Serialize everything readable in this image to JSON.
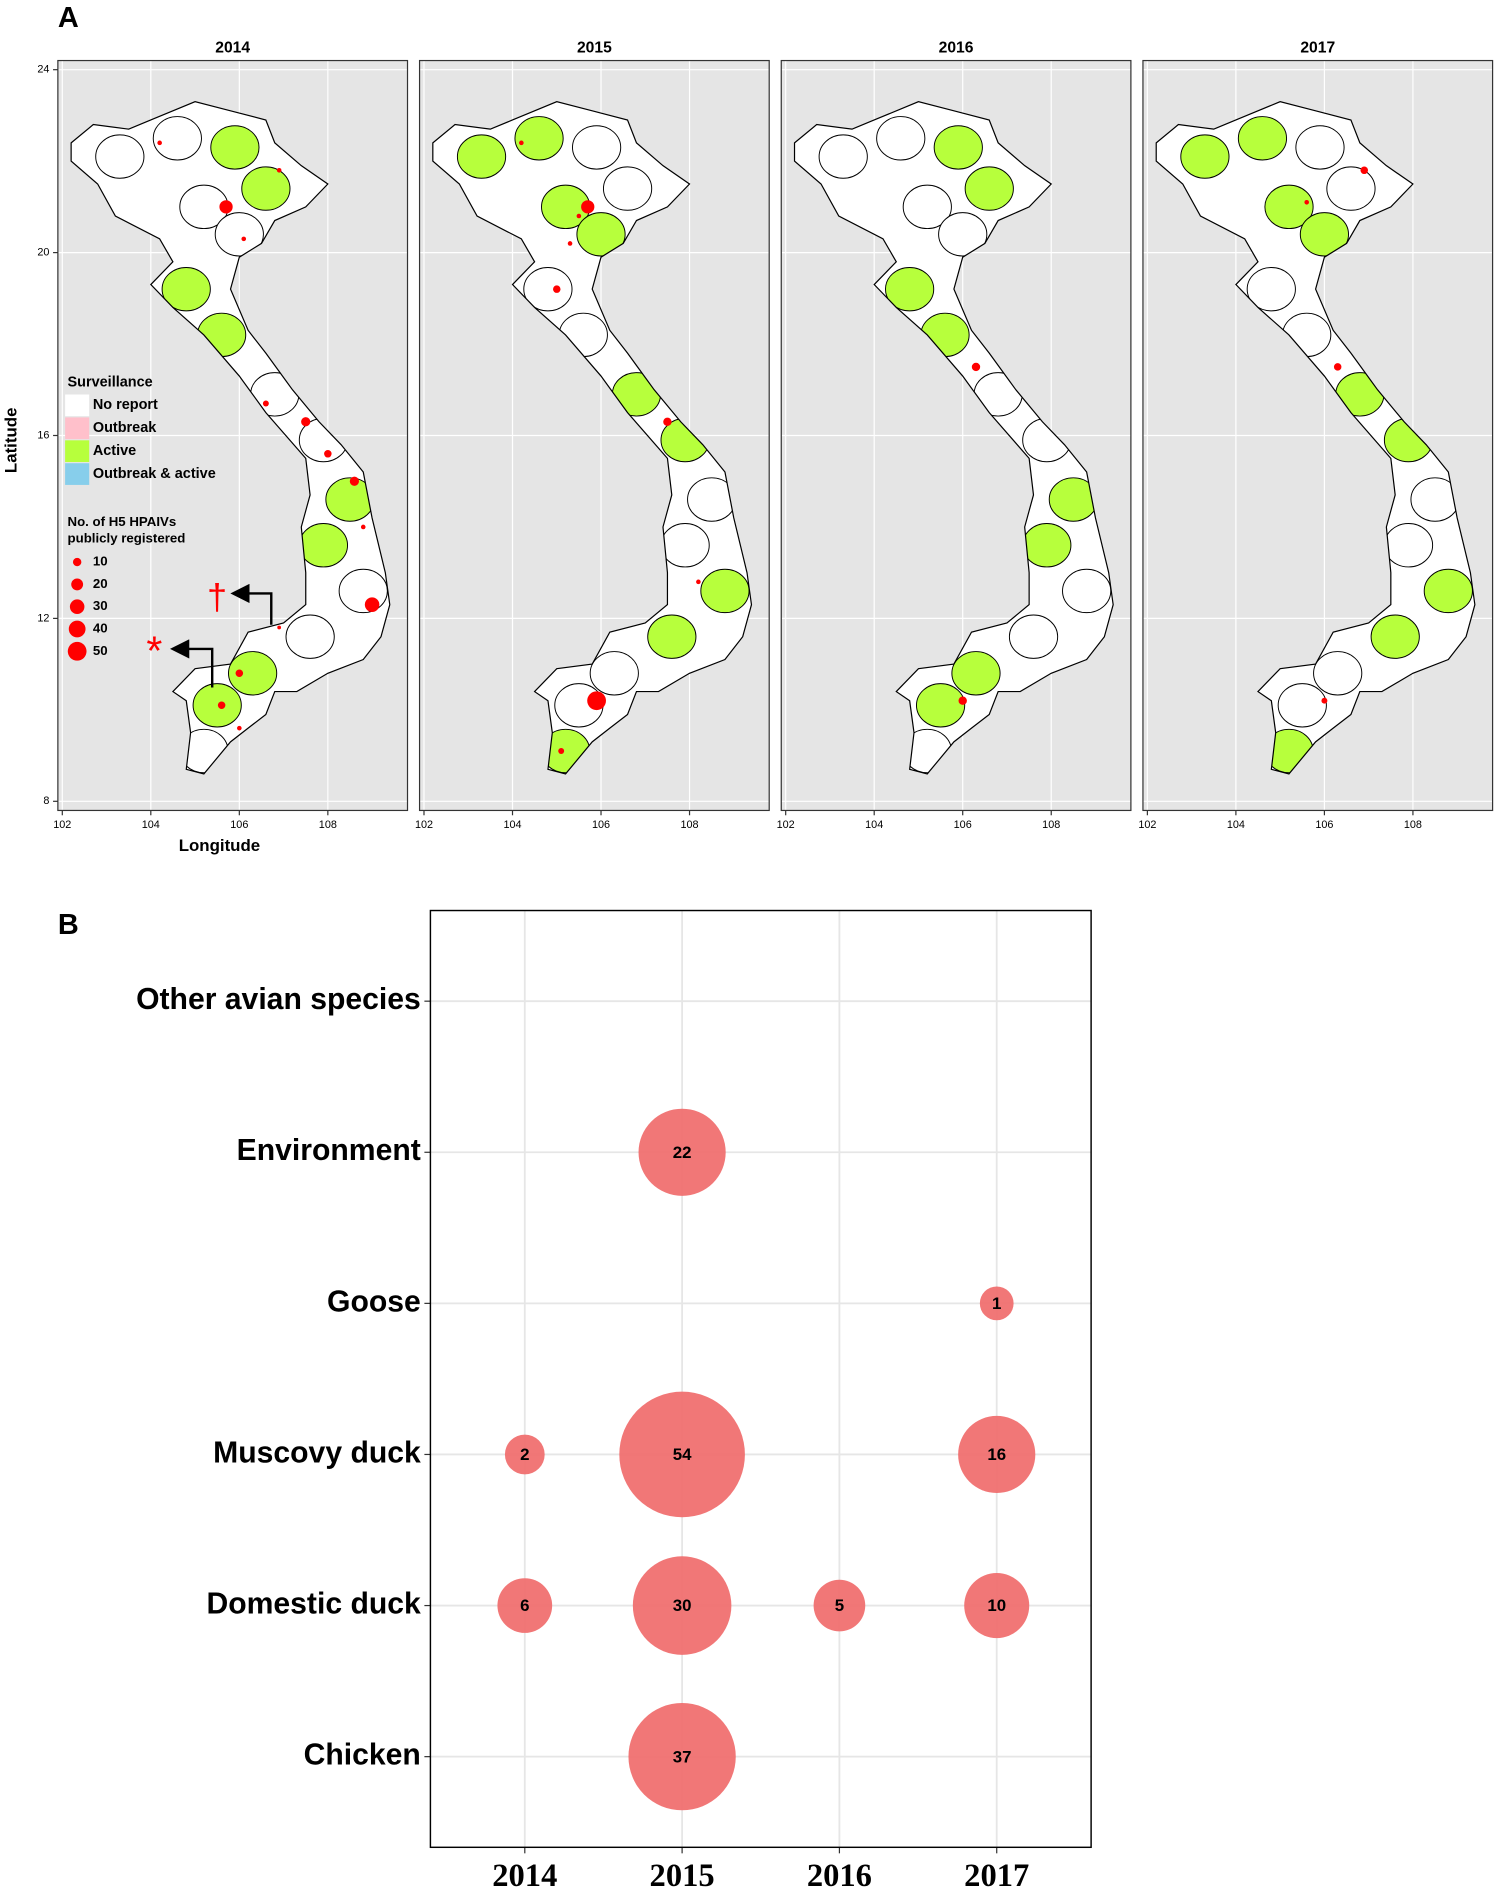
{
  "chart_data": [
    {
      "type": "map",
      "panel_label": "A",
      "x_label": "Longitude",
      "y_label": "Latitude",
      "xlim": [
        101.9,
        109.8
      ],
      "ylim": [
        7.8,
        24.2
      ],
      "xticks": [
        102,
        104,
        106,
        108
      ],
      "yticks": [
        8,
        12,
        16,
        20,
        24
      ],
      "grid": true,
      "legend": {
        "title": "Surveillance",
        "position": "left",
        "items": [
          {
            "name": "No report",
            "color": "#ffffff"
          },
          {
            "name": "Outbreak",
            "color": "#ffc0cb"
          },
          {
            "name": "Active",
            "color": "#b7ff3c"
          },
          {
            "name": "Outbreak & active",
            "color": "#87ceeb"
          }
        ]
      },
      "size_legend": {
        "title": [
          "No. of H5 HPAIVs",
          "publicly registered"
        ],
        "values": [
          10,
          20,
          30,
          40,
          50
        ],
        "color": "#ff0000"
      },
      "annotations": [
        "†",
        "*"
      ],
      "panels": [
        {
          "title": "2014",
          "points": {
            "lon": [
              105.7,
              106.9,
              104.2,
              106.1,
              106.6,
              107.5,
              108.0,
              108.6,
              108.8,
              109.0,
              106.0,
              105.6,
              106.0,
              106.9
            ],
            "lat": [
              21.0,
              21.8,
              22.4,
              20.3,
              16.7,
              16.3,
              15.6,
              15.0,
              14.0,
              12.3,
              10.8,
              10.1,
              9.6,
              11.8
            ],
            "count": [
              25,
              3,
              3,
              3,
              5,
              12,
              8,
              12,
              3,
              30,
              8,
              8,
              3,
              2
            ]
          }
        },
        {
          "title": "2015",
          "points": {
            "lon": [
              105.7,
              104.2,
              105.3,
              105.0,
              107.5,
              108.2,
              105.9,
              105.1,
              105.5
            ],
            "lat": [
              21.0,
              22.4,
              20.2,
              19.2,
              16.3,
              12.8,
              10.2,
              9.1,
              20.8
            ],
            "count": [
              25,
              3,
              3,
              8,
              10,
              3,
              50,
              5,
              3
            ]
          }
        },
        {
          "title": "2016",
          "points": {
            "lon": [
              106.3,
              106.0
            ],
            "lat": [
              17.5,
              10.2
            ],
            "count": [
              10,
              10
            ]
          }
        },
        {
          "title": "2017",
          "points": {
            "lon": [
              106.9,
              106.3,
              106.0,
              105.6
            ],
            "lat": [
              21.8,
              17.5,
              10.2,
              21.1
            ],
            "count": [
              8,
              8,
              5,
              3
            ]
          }
        }
      ]
    },
    {
      "type": "bubble",
      "panel_label": "B",
      "color": "#f07070",
      "categories": [
        "2014",
        "2015",
        "2016",
        "2017"
      ],
      "y_categories": [
        "Chicken",
        "Domestic duck",
        "Muscovy duck",
        "Goose",
        "Environment",
        "Other avian species"
      ],
      "values": [
        [
          null,
          37,
          null,
          null
        ],
        [
          6,
          30,
          5,
          10
        ],
        [
          2,
          54,
          null,
          16
        ],
        [
          null,
          null,
          null,
          1
        ],
        [
          null,
          22,
          null,
          null
        ],
        [
          null,
          null,
          null,
          null
        ]
      ],
      "grid": true
    }
  ]
}
